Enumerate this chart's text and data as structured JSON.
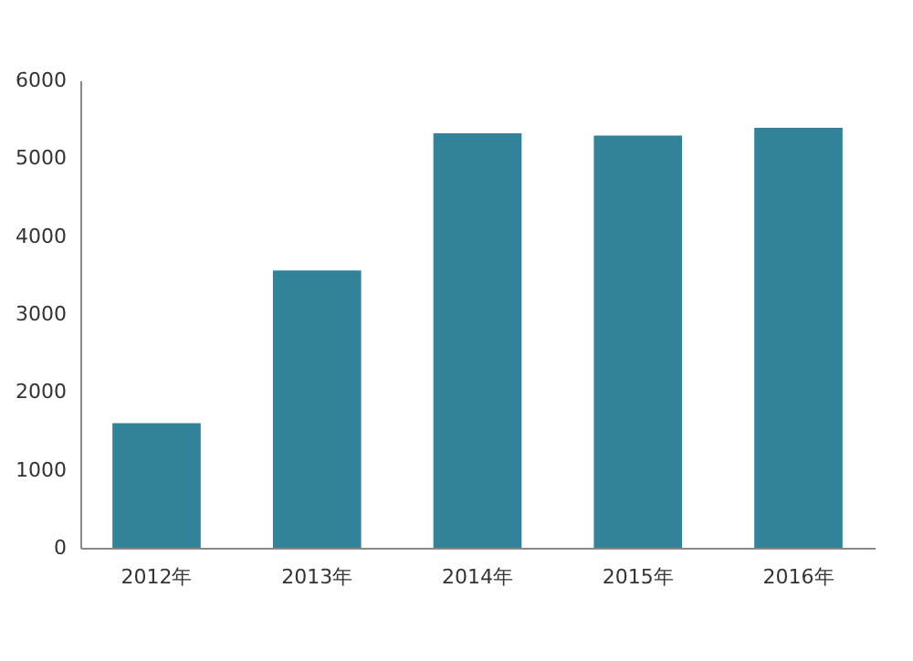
{
  "chart_data": {
    "type": "bar",
    "categories": [
      "2012年",
      "2013年",
      "2014年",
      "2015年",
      "2016年"
    ],
    "values": [
      1600,
      3560,
      5320,
      5290,
      5390
    ],
    "color": "#32839a",
    "ylim": [
      0,
      6000
    ],
    "yticks": [
      0,
      1000,
      2000,
      3000,
      4000,
      5000,
      6000
    ],
    "grid": false
  }
}
